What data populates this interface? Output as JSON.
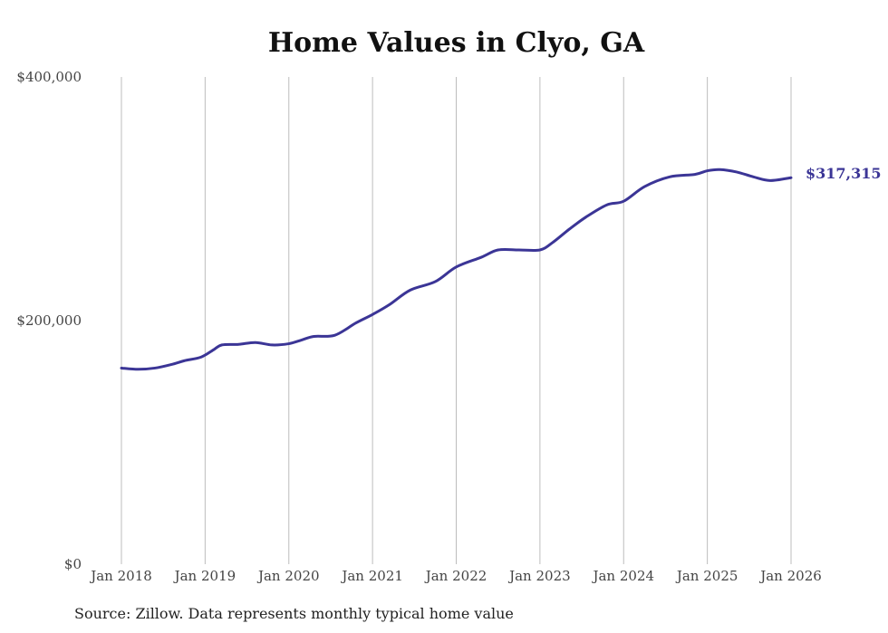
{
  "chart_data": {
    "type": "line",
    "title": "Home Values in Clyo, GA",
    "xlabel": "",
    "ylabel": "",
    "ylim": [
      0,
      400000
    ],
    "y_ticks": [
      {
        "value": 0,
        "label": "$0"
      },
      {
        "value": 200000,
        "label": "$200,000"
      },
      {
        "value": 400000,
        "label": "$400,000"
      }
    ],
    "x_ticks": [
      {
        "value": 2018,
        "label": "Jan 2018"
      },
      {
        "value": 2019,
        "label": "Jan 2019"
      },
      {
        "value": 2020,
        "label": "Jan 2020"
      },
      {
        "value": 2021,
        "label": "Jan 2021"
      },
      {
        "value": 2022,
        "label": "Jan 2022"
      },
      {
        "value": 2023,
        "label": "Jan 2023"
      },
      {
        "value": 2024,
        "label": "Jan 2024"
      },
      {
        "value": 2025,
        "label": "Jan 2025"
      },
      {
        "value": 2026,
        "label": "Jan 2026"
      }
    ],
    "xlim": [
      2018,
      2026
    ],
    "grid": "vertical",
    "series": [
      {
        "name": "Typical home value",
        "color": "#3b3596",
        "end_label": "$317,315",
        "x": [
          2018.0,
          2018.2,
          2018.4,
          2018.6,
          2018.75,
          2018.95,
          2019.1,
          2019.2,
          2019.4,
          2019.6,
          2019.8,
          2020.0,
          2020.15,
          2020.3,
          2020.55,
          2020.8,
          2021.0,
          2021.2,
          2021.45,
          2021.75,
          2022.0,
          2022.3,
          2022.5,
          2022.75,
          2023.0,
          2023.15,
          2023.35,
          2023.55,
          2023.8,
          2024.0,
          2024.25,
          2024.55,
          2024.85,
          2025.0,
          2025.15,
          2025.35,
          2025.55,
          2025.75,
          2026.0
        ],
        "values": [
          161000,
          160000,
          161000,
          164000,
          167000,
          170000,
          176000,
          180000,
          180500,
          182000,
          180000,
          181000,
          184000,
          187000,
          188000,
          198000,
          205000,
          213000,
          225000,
          232000,
          244000,
          252000,
          258000,
          258000,
          258000,
          264000,
          275000,
          285000,
          295000,
          298000,
          310000,
          318000,
          320000,
          323000,
          324000,
          322000,
          318000,
          315000,
          317315
        ]
      }
    ]
  },
  "source": "Source: Zillow. Data represents monthly typical home value"
}
